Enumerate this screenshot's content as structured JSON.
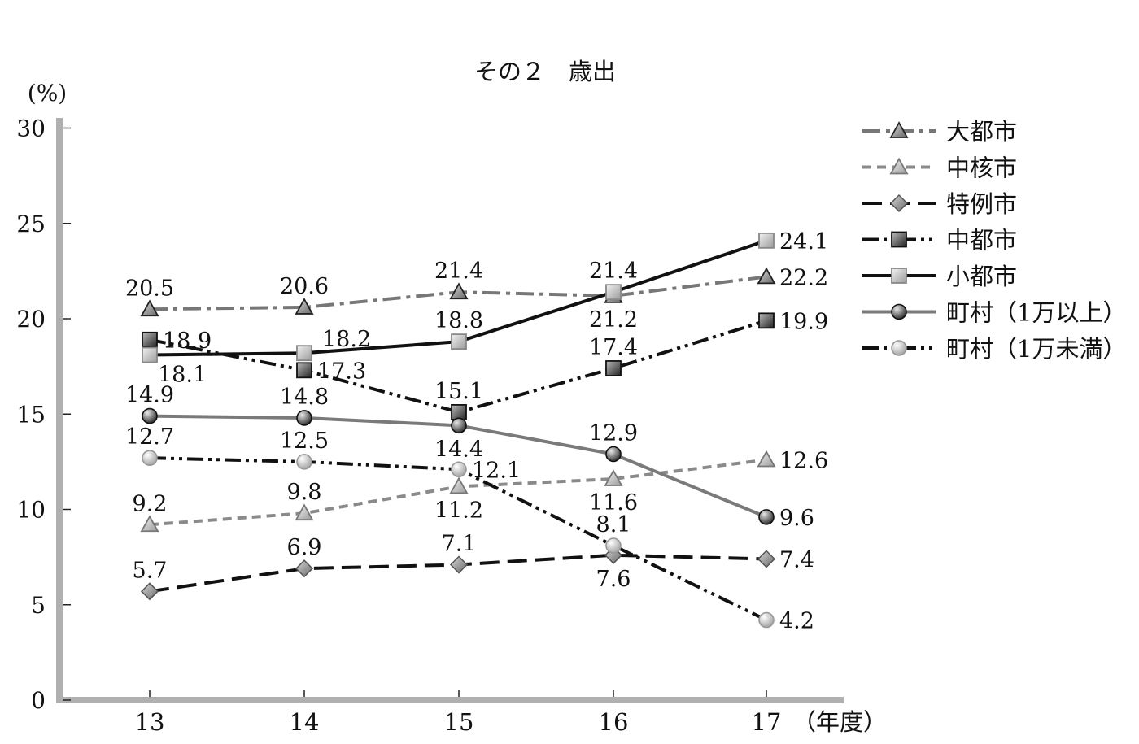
{
  "chart_data": {
    "type": "line",
    "title": "その２　歳出",
    "ylabel": "(%)",
    "xlabel": "（年度）",
    "categories": [
      "13",
      "14",
      "15",
      "16",
      "17"
    ],
    "ylim": [
      0,
      30
    ],
    "yticks": [
      "0",
      "5",
      "10",
      "15",
      "20",
      "25",
      "30"
    ],
    "legend_position": "right",
    "grid": false,
    "series": [
      {
        "name": "大都市",
        "values": [
          20.5,
          20.6,
          21.4,
          21.2,
          22.2
        ],
        "labels": [
          "20.5",
          "20.6",
          "21.4",
          "21.2",
          "22.2"
        ],
        "color": "#777777",
        "dash": "dashdot",
        "marker": "triangle-dark"
      },
      {
        "name": "中核市",
        "values": [
          9.2,
          9.8,
          11.2,
          11.6,
          12.6
        ],
        "labels": [
          "9.2",
          "9.8",
          "11.2",
          "11.6",
          "12.6"
        ],
        "color": "#8a8a8a",
        "dash": "dashed",
        "marker": "triangle-light"
      },
      {
        "name": "特例市",
        "values": [
          5.7,
          6.9,
          7.1,
          7.6,
          7.4
        ],
        "labels": [
          "5.7",
          "6.9",
          "7.1",
          "7.6",
          "7.4"
        ],
        "color": "#111111",
        "dash": "longdash",
        "marker": "diamond"
      },
      {
        "name": "中都市",
        "values": [
          18.9,
          17.3,
          15.1,
          17.4,
          19.9
        ],
        "labels": [
          "18.9",
          "17.3",
          "15.1",
          "17.4",
          "19.9"
        ],
        "color": "#111111",
        "dash": "dashdotdot",
        "marker": "square-dark"
      },
      {
        "name": "小都市",
        "values": [
          18.1,
          18.2,
          18.8,
          21.4,
          24.1
        ],
        "labels": [
          "18.1",
          "18.2",
          "18.8",
          "21.4",
          "24.1"
        ],
        "color": "#111111",
        "dash": "solid",
        "marker": "square-light"
      },
      {
        "name": "町村（1万以上）",
        "values": [
          14.9,
          14.8,
          14.4,
          12.9,
          9.6
        ],
        "labels": [
          "14.9",
          "14.8",
          "14.4",
          "12.9",
          "9.6"
        ],
        "color": "#7a7a7a",
        "dash": "solid",
        "marker": "circle-dark"
      },
      {
        "name": "町村（1万未満）",
        "values": [
          12.7,
          12.5,
          12.1,
          8.1,
          4.2
        ],
        "labels": [
          "12.7",
          "12.5",
          "12.1",
          "8.1",
          "4.2"
        ],
        "color": "#111111",
        "dash": "dashdotdot",
        "marker": "circle-light"
      }
    ]
  }
}
